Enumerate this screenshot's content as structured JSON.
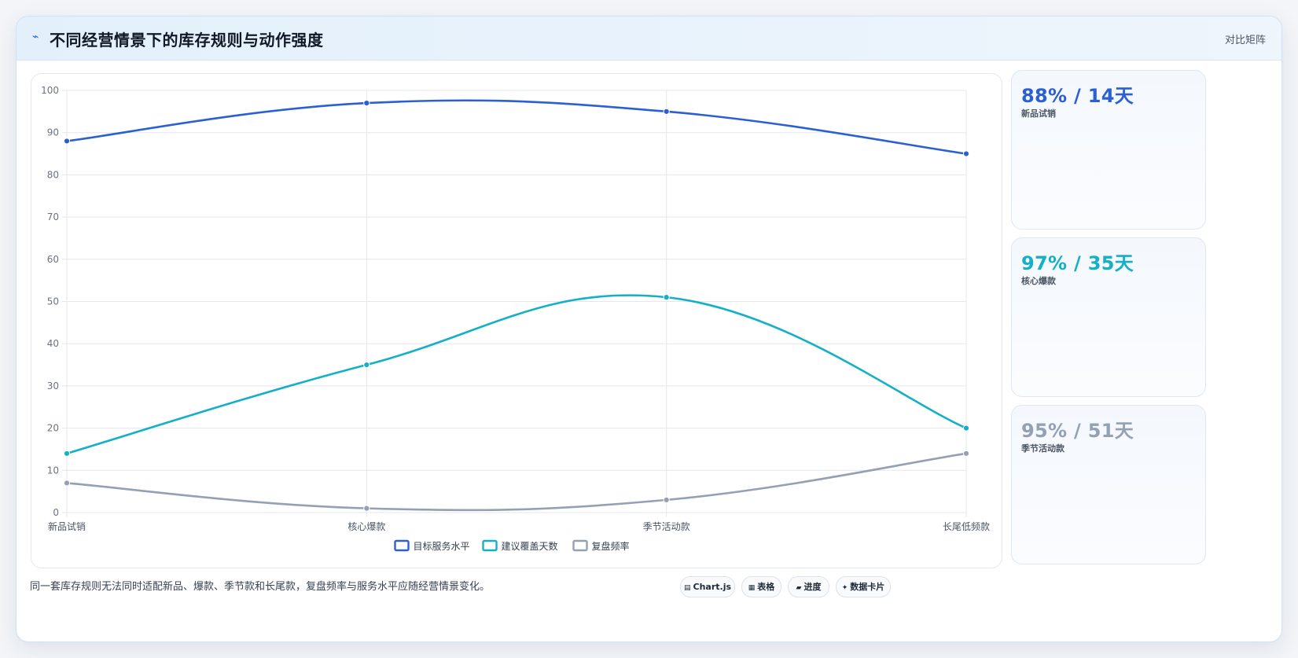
{
  "header": {
    "icon": "trend-icon",
    "title": "不同经营情景下的库存规则与动作强度",
    "matrix_label": "对比矩阵"
  },
  "colors": {
    "blue": "#2b5fd4",
    "cyan": "#14b0c8",
    "gray": "#94a1b5"
  },
  "chart_data": {
    "type": "line",
    "categories": [
      "新品试销",
      "核心爆款",
      "季节活动款",
      "长尾低频款"
    ],
    "ylim": [
      0,
      100
    ],
    "yticks": [
      0,
      10,
      20,
      30,
      40,
      50,
      60,
      70,
      80,
      90,
      100
    ],
    "grid": true,
    "legend_position": "bottom",
    "series": [
      {
        "name": "目标服务水平",
        "values": [
          88,
          97,
          95,
          85
        ],
        "color": "#2b5fd4"
      },
      {
        "name": "建议覆盖天数",
        "values": [
          14,
          35,
          51,
          20
        ],
        "color": "#14b0c8"
      },
      {
        "name": "复盘频率",
        "values": [
          7,
          1,
          3,
          14
        ],
        "color": "#94a1b5"
      }
    ]
  },
  "cards": [
    {
      "value": "88% / 14天",
      "label": "新品试销",
      "color": "#2b5fd4"
    },
    {
      "value": "97% / 35天",
      "label": "核心爆款",
      "color": "#14b0c8"
    },
    {
      "value": "95% / 51天",
      "label": "季节活动款",
      "color": "#94a1b5"
    }
  ],
  "footer": {
    "note": "同一套库存规则无法同时适配新品、爆款、季节款和长尾款，复盘频率与服务水平应随经营情景变化。",
    "pills": [
      {
        "icon": "chart-icon",
        "glyph": "▤",
        "label": "Chart.js"
      },
      {
        "icon": "table-icon",
        "glyph": "▦",
        "label": "表格"
      },
      {
        "icon": "progress-icon",
        "glyph": "▰",
        "label": "进度"
      },
      {
        "icon": "card-icon",
        "glyph": "✦",
        "label": "数据卡片"
      }
    ]
  }
}
